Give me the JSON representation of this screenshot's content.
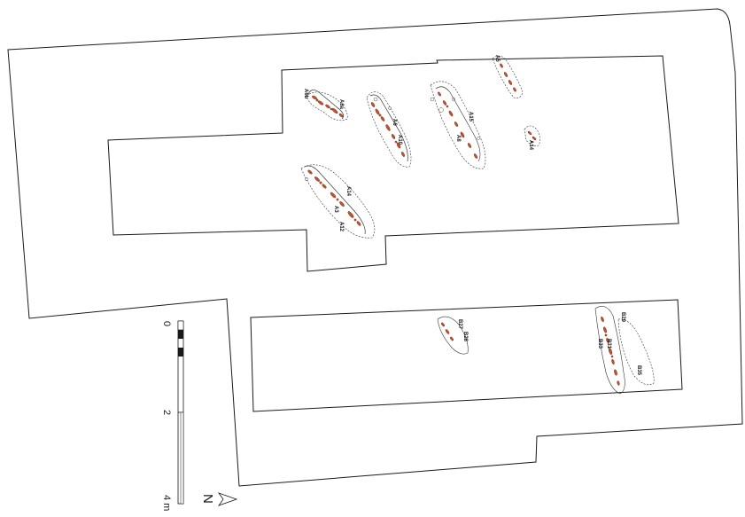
{
  "features": {
    "a": [
      {
        "id": "a-label-1",
        "text": "A6a"
      },
      {
        "id": "a-label-2",
        "text": "A6b"
      },
      {
        "id": "a-label-3",
        "text": "A6"
      },
      {
        "id": "a-label-4",
        "text": "A8"
      },
      {
        "id": "a-label-5",
        "text": "A10"
      },
      {
        "id": "a-label-6",
        "text": "A15"
      },
      {
        "id": "a-label-7",
        "text": "A5"
      },
      {
        "id": "a-label-8",
        "text": "A14"
      },
      {
        "id": "a-label-9",
        "text": "A3"
      },
      {
        "id": "a-label-10",
        "text": "A12"
      },
      {
        "id": "a-label-11",
        "text": "A14"
      }
    ],
    "b": [
      {
        "id": "b-label-1",
        "text": "B27"
      },
      {
        "id": "b-label-2",
        "text": "B28"
      },
      {
        "id": "b-label-3",
        "text": "B29"
      },
      {
        "id": "b-label-4",
        "text": "B31"
      },
      {
        "id": "b-label-5",
        "text": "B33"
      },
      {
        "id": "b-label-6",
        "text": "B35"
      }
    ]
  },
  "scale_bar": {
    "ticks": [
      "0",
      "2",
      "4 m"
    ]
  },
  "north_arrow": {
    "letter": "N"
  },
  "colors": {
    "outline": "#1a1a1a",
    "bone_fill": "#c0522f",
    "background": "#ffffff"
  }
}
